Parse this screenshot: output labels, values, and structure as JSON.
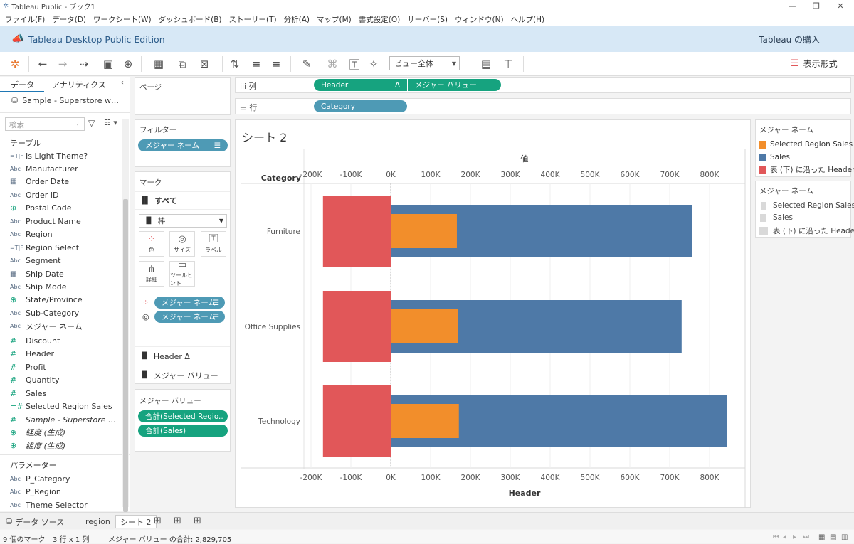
{
  "window": {
    "title": "Tableau Public - ブック1"
  },
  "menu": [
    "ファイル(F)",
    "データ(D)",
    "ワークシート(W)",
    "ダッシュボード(B)",
    "ストーリー(T)",
    "分析(A)",
    "マップ(M)",
    "書式設定(O)",
    "サーバー(S)",
    "ウィンドウ(N)",
    "ヘルプ(H)"
  ],
  "banner": {
    "title": "Tableau Desktop Public Edition",
    "buy": "Tableau の購入"
  },
  "toolbar": {
    "view_select": "ビュー全体",
    "show_me": "表示形式"
  },
  "left": {
    "tab_data": "データ",
    "tab_analytics": "アナリティクス",
    "datasource": "Sample - Superstore w…",
    "search_placeholder": "検索",
    "tables_header": "テーブル",
    "fields": [
      {
        "icon": "=T|F",
        "type": "calc",
        "name": "Is Light Theme?"
      },
      {
        "icon": "Abc",
        "type": "dim",
        "name": "Manufacturer"
      },
      {
        "icon": "date",
        "type": "date",
        "name": "Order Date"
      },
      {
        "icon": "Abc",
        "type": "dim",
        "name": "Order ID"
      },
      {
        "icon": "globe",
        "type": "geo",
        "name": "Postal Code"
      },
      {
        "icon": "Abc",
        "type": "dim",
        "name": "Product Name"
      },
      {
        "icon": "Abc",
        "type": "dim",
        "name": "Region"
      },
      {
        "icon": "=T|F",
        "type": "calc",
        "name": "Region Select"
      },
      {
        "icon": "Abc",
        "type": "dim",
        "name": "Segment"
      },
      {
        "icon": "date",
        "type": "date",
        "name": "Ship Date"
      },
      {
        "icon": "Abc",
        "type": "dim",
        "name": "Ship Mode"
      },
      {
        "icon": "globe",
        "type": "geo",
        "name": "State/Province"
      },
      {
        "icon": "Abc",
        "type": "dim",
        "name": "Sub-Category"
      },
      {
        "icon": "Abc",
        "type": "dim",
        "name": "メジャー ネーム"
      },
      {
        "icon": "#",
        "type": "meas",
        "name": "Discount"
      },
      {
        "icon": "#",
        "type": "meas",
        "name": "Header"
      },
      {
        "icon": "#",
        "type": "meas",
        "name": "Profit"
      },
      {
        "icon": "#",
        "type": "meas",
        "name": "Quantity"
      },
      {
        "icon": "#",
        "type": "meas",
        "name": "Sales"
      },
      {
        "icon": "=#",
        "type": "meas",
        "name": "Selected Region Sales"
      },
      {
        "icon": "#",
        "type": "meas",
        "name": "Sample - Superstore …",
        "italic": true
      },
      {
        "icon": "globe",
        "type": "geo",
        "name": "経度 (生成)",
        "italic": true
      },
      {
        "icon": "globe",
        "type": "geo",
        "name": "緯度 (生成)",
        "italic": true
      }
    ],
    "params_header": "パラメーター",
    "params": [
      {
        "icon": "Abc",
        "name": "P_Category"
      },
      {
        "icon": "Abc",
        "name": "P_Region"
      },
      {
        "icon": "Abc",
        "name": "Theme Selector"
      }
    ]
  },
  "cards": {
    "pages": "ページ",
    "filters": "フィルター",
    "filter_pill": "メジャー ネーム",
    "marks": "マーク",
    "marks_all": "すべて",
    "mark_type": "棒",
    "mark_buttons": [
      "色",
      "サイズ",
      "ラベル",
      "詳細",
      "ツールヒント"
    ],
    "marks_pill1": "メジャー ネーム",
    "marks_pill2": "メジャー ネーム",
    "marks_header": "Header Δ",
    "marks_values": "メジャー バリュー",
    "mv_title": "メジャー バリュー",
    "mv_pill1": "合計(Selected Regio..",
    "mv_pill2": "合計(Sales)"
  },
  "shelves": {
    "columns_label": "列",
    "rows_label": "行",
    "col_pill1": "Header",
    "col_pill1_delta": "Δ",
    "col_pill2": "メジャー バリュー",
    "row_pill": "Category"
  },
  "sheet_title": "シート 2",
  "legend1": {
    "title": "メジャー ネーム",
    "items": [
      {
        "label": "Selected Region Sales",
        "color": "#f28e2b"
      },
      {
        "label": "Sales",
        "color": "#4e79a7"
      },
      {
        "label": "表 (下) に沿った Header",
        "color": "#e15759"
      }
    ]
  },
  "legend2": {
    "title": "メジャー ネーム",
    "items": [
      {
        "label": "Selected Region Sales",
        "color": "#d9d9d9"
      },
      {
        "label": "Sales",
        "color": "#d9d9d9"
      },
      {
        "label": "表 (下) に沿った Header",
        "color": "#d9d9d9"
      }
    ]
  },
  "chart_data": {
    "type": "bar",
    "orientation": "horizontal",
    "row_header": "Category",
    "top_axis_title": "値",
    "xlabel": "Header",
    "categories": [
      "Furniture",
      "Office Supplies",
      "Technology"
    ],
    "x_ticks": [
      "-200K",
      "-100K",
      "0K",
      "100K",
      "200K",
      "300K",
      "400K",
      "500K",
      "600K",
      "700K",
      "800K"
    ],
    "xlim": [
      -220000,
      890000
    ],
    "series": [
      {
        "name": "表 (下) に沿った Header",
        "color": "#e15759",
        "values": [
          [
            -170000,
            0
          ],
          [
            -170000,
            0
          ],
          [
            -170000,
            0
          ]
        ],
        "band": "wide"
      },
      {
        "name": "Sales",
        "color": "#4e79a7",
        "values": [
          757000,
          730000,
          843000
        ],
        "band": "medium"
      },
      {
        "name": "Selected Region Sales",
        "color": "#f28e2b",
        "values": [
          166000,
          168000,
          171000
        ],
        "band": "narrow"
      }
    ]
  },
  "tabs": {
    "datasource": "データ ソース",
    "sheets": [
      "region",
      "シート 2"
    ]
  },
  "status": {
    "marks": "9 個のマーク",
    "rows": "3 行 x 1 列",
    "sum": "メジャー バリュー の合計: 2,829,705"
  }
}
